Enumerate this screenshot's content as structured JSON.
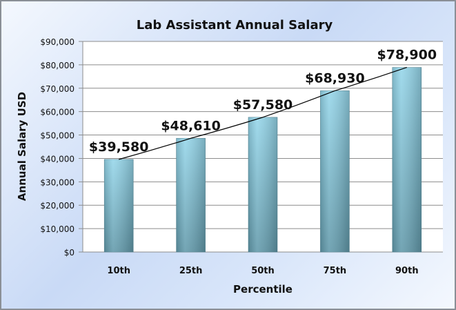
{
  "chart_data": {
    "type": "bar",
    "title": "Lab Assistant Annual Salary",
    "xlabel": "Percentile",
    "ylabel": "Annual Salary USD",
    "categories": [
      "10th",
      "25th",
      "50th",
      "75th",
      "90th"
    ],
    "values": [
      39580,
      48610,
      57580,
      68930,
      78900
    ],
    "data_labels": [
      "$39,580",
      "$48,610",
      "$57,580",
      "$68,930",
      "$78,900"
    ],
    "ylim": [
      0,
      90000
    ],
    "yticks": [
      0,
      10000,
      20000,
      30000,
      40000,
      50000,
      60000,
      70000,
      80000,
      90000
    ],
    "ytick_labels": [
      "$0",
      "$10,000",
      "$20,000",
      "$30,000",
      "$40,000",
      "$50,000",
      "$60,000",
      "$70,000",
      "$80,000",
      "$90,000"
    ],
    "grid": true,
    "trendline": true,
    "legend": "none",
    "colors": {
      "bar_top": "#93d3e8",
      "bar_bottom": "#5f97a8",
      "gridline": "#8c8c8c",
      "trendline": "#000000"
    }
  }
}
